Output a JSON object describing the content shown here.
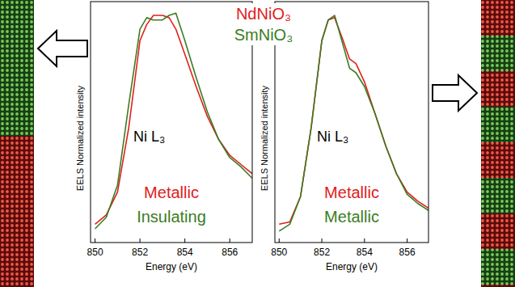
{
  "chart_data": [
    {
      "type": "line",
      "x_label": "Energy (eV)",
      "y_label": "EELS Normalized intensity",
      "x": [
        850,
        850.5,
        851,
        851.5,
        852,
        852.3,
        852.6,
        853,
        853.3,
        853.6,
        854,
        854.5,
        855,
        855.5,
        856,
        856.5,
        857
      ],
      "xlim": [
        849.8,
        857
      ],
      "ylim": [
        0,
        1.05
      ],
      "xticks": [
        850,
        852,
        854,
        856
      ],
      "tick_labels": "x",
      "legend": "top",
      "series": [
        {
          "name": "NdNiO₃",
          "color": "#e0201b",
          "values": [
            0.08,
            0.12,
            0.22,
            0.5,
            0.88,
            0.95,
            0.99,
            0.99,
            0.98,
            0.93,
            0.82,
            0.68,
            0.55,
            0.45,
            0.38,
            0.34,
            0.3
          ]
        },
        {
          "name": "SmNiO₃",
          "color": "#3b7d23",
          "values": [
            0.06,
            0.11,
            0.25,
            0.6,
            0.93,
            0.98,
            0.97,
            0.97,
            0.99,
            1.0,
            0.88,
            0.72,
            0.57,
            0.45,
            0.37,
            0.33,
            0.28
          ]
        }
      ],
      "annotations": [
        {
          "text": "Ni L₃",
          "color": "#000000"
        },
        {
          "text": "Metallic",
          "color": "#e0201b"
        },
        {
          "text": "Insulating",
          "color": "#3b7d23"
        }
      ]
    },
    {
      "type": "line",
      "x_label": "Energy (eV)",
      "y_label": "EELS Normalized intensity",
      "x": [
        850,
        850.5,
        851,
        851.5,
        852,
        852.3,
        852.6,
        853,
        853.3,
        853.6,
        854,
        854.5,
        855,
        855.5,
        856,
        856.5,
        857
      ],
      "xlim": [
        849.8,
        857
      ],
      "ylim": [
        0,
        1.05
      ],
      "xticks": [
        850,
        852,
        854,
        856
      ],
      "tick_labels": "x",
      "series": [
        {
          "color": "#e0201b",
          "values": [
            0.08,
            0.09,
            0.2,
            0.5,
            0.88,
            0.97,
            0.98,
            0.88,
            0.8,
            0.78,
            0.7,
            0.56,
            0.42,
            0.3,
            0.22,
            0.18,
            0.15
          ]
        },
        {
          "color": "#3b7d23",
          "values": [
            0.05,
            0.08,
            0.2,
            0.5,
            0.88,
            0.97,
            0.99,
            0.86,
            0.76,
            0.74,
            0.68,
            0.56,
            0.42,
            0.3,
            0.21,
            0.17,
            0.14
          ]
        }
      ],
      "annotations": [
        {
          "text": "Ni L₃",
          "color": "#000000"
        },
        {
          "text": "Metallic",
          "color": "#e0201b"
        },
        {
          "text": "Metallic",
          "color": "#3b7d23"
        }
      ]
    }
  ]
}
